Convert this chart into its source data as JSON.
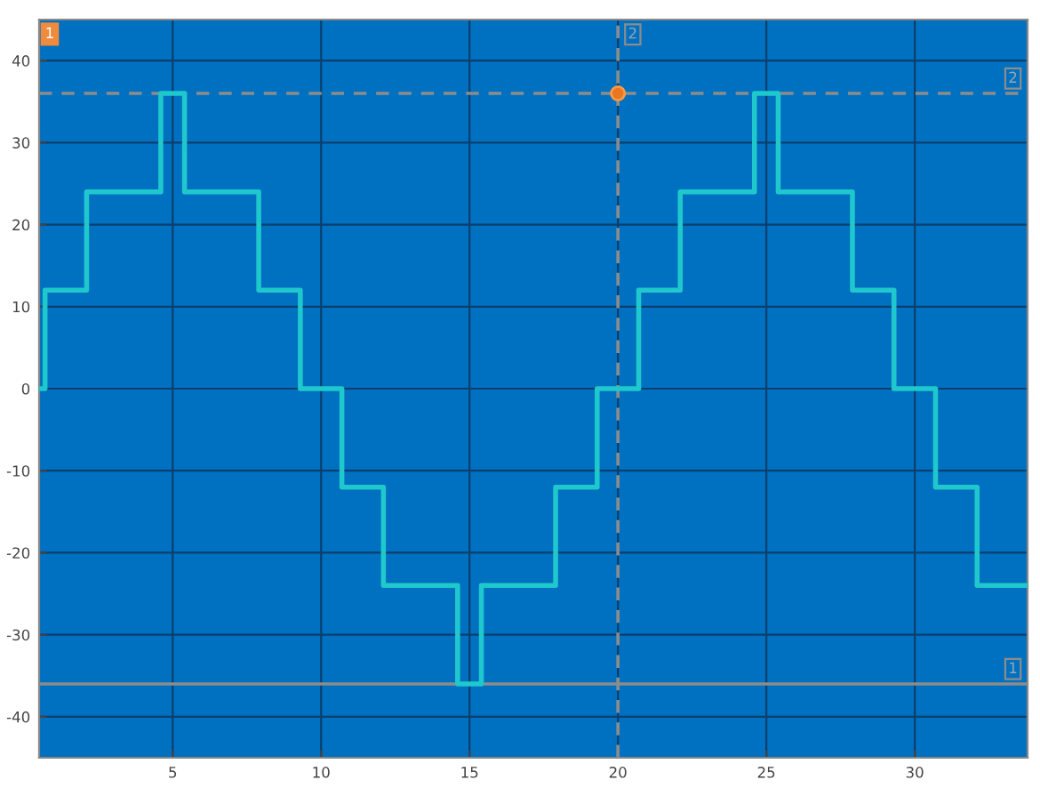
{
  "chart_data": {
    "type": "step",
    "x": [
      0.5,
      0.7,
      2.1,
      4.6,
      5.4,
      7.9,
      9.3,
      10.7,
      12.1,
      14.6,
      15.4,
      17.9,
      19.3,
      20.7,
      22.1,
      24.6,
      25.4,
      27.9,
      29.3,
      30.7,
      32.1,
      33.8
    ],
    "series": [
      {
        "color": "#1ec8cc",
        "values": [
          0,
          12,
          24,
          36,
          24,
          12,
          0,
          -12,
          -24,
          -36,
          -24,
          -12,
          0,
          12,
          24,
          36,
          24,
          12,
          0,
          -12,
          -24,
          -24
        ]
      },
      {
        "type": "scatter",
        "color": "#e87722",
        "x": [
          20
        ],
        "values": [
          36
        ],
        "marker": "circle"
      }
    ],
    "xlim": [
      0.5,
      33.8
    ],
    "ylim": [
      -45,
      45
    ],
    "xticks": [
      5,
      10,
      15,
      20,
      25,
      30
    ],
    "yticks": [
      -40,
      -30,
      -20,
      -10,
      0,
      10,
      20,
      30,
      40
    ],
    "grid": true,
    "ref_lines": [
      {
        "axis": "y",
        "value": 36,
        "color": "#8c8c8c",
        "line_style": "dashed"
      },
      {
        "axis": "y",
        "value": -36,
        "color": "#8c8c8c",
        "line_style": "solid"
      },
      {
        "axis": "x",
        "value": 20,
        "color": "#8c8c8c",
        "line_style": "dashed"
      }
    ],
    "annotations": [
      "1",
      {
        "text": "2",
        "y": 36
      },
      {
        "text": "1",
        "y": -36
      },
      {
        "text": "2",
        "x": 20
      }
    ]
  }
}
